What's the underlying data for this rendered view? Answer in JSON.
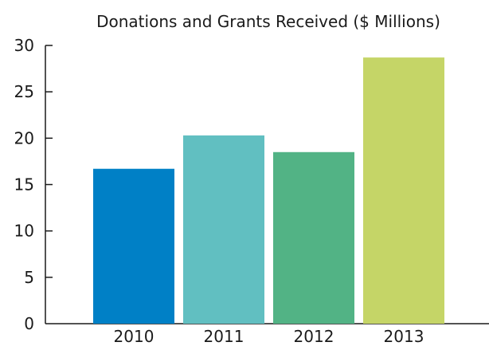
{
  "chart_data": {
    "type": "bar",
    "title": "Donations and Grants Received ($ Millions)",
    "xlabel": "",
    "ylabel": "",
    "categories": [
      "2010",
      "2011",
      "2012",
      "2013"
    ],
    "values": [
      16.7,
      20.3,
      18.5,
      28.7
    ],
    "colors": [
      "#0080c6",
      "#61bfc1",
      "#52b385",
      "#c5d567"
    ],
    "ylim": [
      0,
      30
    ],
    "yticks": [
      0,
      5,
      10,
      15,
      20,
      25,
      30
    ],
    "grid": false,
    "legend": "none"
  }
}
